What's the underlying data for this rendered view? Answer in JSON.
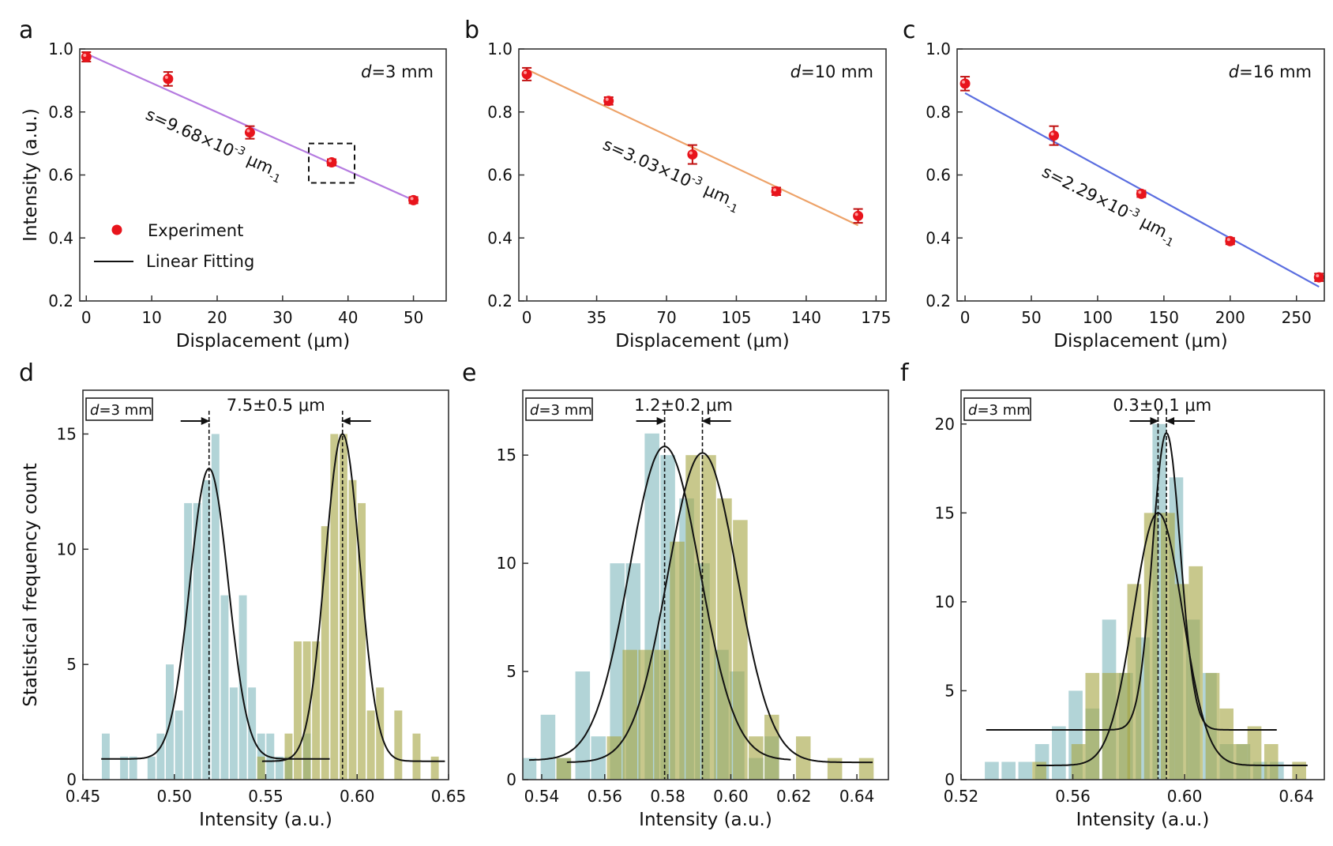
{
  "panel_labels": [
    "a",
    "b",
    "c",
    "d",
    "e",
    "f"
  ],
  "chart_data": [
    {
      "type": "scatter",
      "xlabel": "Displacement (μm)",
      "ylabel": "Intensity (a.u.)",
      "xlim": [
        -1,
        55
      ],
      "ylim": [
        0.2,
        1.0
      ],
      "xticks": [
        "0",
        "10",
        "20",
        "30",
        "40",
        "50"
      ],
      "yticks": [
        "0.2",
        "0.4",
        "0.6",
        "0.8",
        "1.0"
      ],
      "distance_label": [
        "d",
        "=3 mm"
      ],
      "slope_label": [
        "s=9.68×10",
        "-3",
        " μm",
        "-1"
      ],
      "point_color": "#e8141c",
      "fit_color": "#b57be0",
      "points": [
        {
          "x": 0,
          "y": 0.975,
          "err": 0.015
        },
        {
          "x": 12.5,
          "y": 0.905,
          "err": 0.022
        },
        {
          "x": 25,
          "y": 0.735,
          "err": 0.02
        },
        {
          "x": 37.5,
          "y": 0.64,
          "err": 0.01
        },
        {
          "x": 50,
          "y": 0.52,
          "err": 0.01
        }
      ],
      "fit": {
        "x": [
          0,
          50
        ],
        "y": [
          0.985,
          0.52
        ]
      },
      "legend": {
        "experiment": "Experiment",
        "fit": "Linear Fitting"
      },
      "highlight_box": {
        "x": [
          34,
          41
        ],
        "y": [
          0.575,
          0.7
        ]
      }
    },
    {
      "type": "scatter",
      "xlabel": "Displacement (μm)",
      "xlim": [
        -4,
        180
      ],
      "ylim": [
        0.2,
        1.0
      ],
      "xticks": [
        "0",
        "35",
        "70",
        "105",
        "140",
        "175"
      ],
      "yticks": [
        "0.2",
        "0.4",
        "0.6",
        "0.8",
        "1.0"
      ],
      "distance_label": [
        "d",
        "=10 mm"
      ],
      "slope_label": [
        "s=3.03×10",
        "-3",
        " μm",
        "-1"
      ],
      "point_color": "#e8141c",
      "fit_color": "#eda268",
      "points": [
        {
          "x": 0,
          "y": 0.92,
          "err": 0.02
        },
        {
          "x": 41,
          "y": 0.835,
          "err": 0.012
        },
        {
          "x": 83,
          "y": 0.665,
          "err": 0.03
        },
        {
          "x": 125,
          "y": 0.548,
          "err": 0.012
        },
        {
          "x": 166,
          "y": 0.47,
          "err": 0.022
        }
      ],
      "fit": {
        "x": [
          0,
          166
        ],
        "y": [
          0.935,
          0.44
        ]
      }
    },
    {
      "type": "scatter",
      "xlabel": "Displacement (μm)",
      "xlim": [
        -6,
        271
      ],
      "ylim": [
        0.2,
        1.0
      ],
      "xticks": [
        "0",
        "50",
        "100",
        "150",
        "200",
        "250"
      ],
      "yticks": [
        "0.2",
        "0.4",
        "0.6",
        "0.8",
        "1.0"
      ],
      "distance_label": [
        "d",
        "=16 mm"
      ],
      "slope_label": [
        "s=2.29×10",
        "-3",
        " μm",
        "-1"
      ],
      "point_color": "#e8141c",
      "fit_color": "#5b6ee0",
      "points": [
        {
          "x": 0,
          "y": 0.89,
          "err": 0.022
        },
        {
          "x": 67,
          "y": 0.725,
          "err": 0.03
        },
        {
          "x": 133,
          "y": 0.54,
          "err": 0.01
        },
        {
          "x": 200,
          "y": 0.39,
          "err": 0.01
        },
        {
          "x": 267,
          "y": 0.275,
          "err": 0.012
        }
      ],
      "fit": {
        "x": [
          0,
          267
        ],
        "y": [
          0.86,
          0.245
        ]
      }
    },
    {
      "type": "bar",
      "xlabel": "Intensity (a.u.)",
      "ylabel": "Statistical frequency count",
      "xlim": [
        0.45,
        0.65
      ],
      "ylim": [
        0,
        16.9
      ],
      "xticks": [
        "0.45",
        "0.50",
        "0.55",
        "0.60",
        "0.65"
      ],
      "yticks": [
        "0",
        "5",
        "10",
        "15"
      ],
      "distance_label": [
        "d",
        "=3 mm"
      ],
      "separation_label": "7.5±0.5 μm",
      "bin_width": 0.005,
      "series": [
        {
          "color": "#82b9be",
          "bars": [
            [
              0.4625,
              2
            ],
            [
              0.4725,
              1
            ],
            [
              0.4775,
              1
            ],
            [
              0.4875,
              1
            ],
            [
              0.4925,
              2
            ],
            [
              0.4975,
              5
            ],
            [
              0.5025,
              3
            ],
            [
              0.5075,
              12
            ],
            [
              0.5125,
              12
            ],
            [
              0.5175,
              13
            ],
            [
              0.5225,
              15
            ],
            [
              0.5275,
              8
            ],
            [
              0.5325,
              4
            ],
            [
              0.5375,
              8
            ],
            [
              0.5425,
              4
            ],
            [
              0.5475,
              2
            ],
            [
              0.5525,
              2
            ],
            [
              0.5575,
              1
            ],
            [
              0.5625,
              1
            ],
            [
              0.5725,
              2
            ]
          ],
          "gaussian": {
            "center": 0.519,
            "peak": 13.5,
            "baseline": 0.9,
            "sigma": 0.0105,
            "range": [
              0.46,
              0.585
            ]
          }
        },
        {
          "color": "#a6a646",
          "bars": [
            [
              0.5475,
              1
            ],
            [
              0.5625,
              2
            ],
            [
              0.5675,
              6
            ],
            [
              0.5725,
              6
            ],
            [
              0.5775,
              6
            ],
            [
              0.5825,
              11
            ],
            [
              0.5875,
              15
            ],
            [
              0.5925,
              15
            ],
            [
              0.5975,
              13
            ],
            [
              0.6025,
              12
            ],
            [
              0.6075,
              3
            ],
            [
              0.6125,
              4
            ],
            [
              0.6225,
              3
            ],
            [
              0.6325,
              2
            ],
            [
              0.6425,
              1
            ]
          ],
          "gaussian": {
            "center": 0.592,
            "peak": 15.0,
            "baseline": 0.8,
            "sigma": 0.0095,
            "range": [
              0.548,
              0.648
            ]
          }
        }
      ]
    },
    {
      "type": "bar",
      "xlabel": "Intensity (a.u.)",
      "xlim": [
        0.534,
        0.65
      ],
      "ylim": [
        0,
        18
      ],
      "xticks": [
        "0.54",
        "0.56",
        "0.58",
        "0.60",
        "0.62",
        "0.64"
      ],
      "yticks": [
        "0",
        "5",
        "10",
        "15"
      ],
      "distance_label": [
        "d",
        "=3 mm"
      ],
      "separation_label": "1.2±0.2 μm",
      "bin_width": 0.0054,
      "series": [
        {
          "color": "#82b9be",
          "bars": [
            [
              0.536,
              1
            ],
            [
              0.542,
              3
            ],
            [
              0.547,
              1
            ],
            [
              0.553,
              5
            ],
            [
              0.558,
              2
            ],
            [
              0.564,
              10
            ],
            [
              0.569,
              10
            ],
            [
              0.575,
              16
            ],
            [
              0.58,
              15
            ],
            [
              0.586,
              13
            ],
            [
              0.591,
              10
            ],
            [
              0.597,
              6
            ],
            [
              0.602,
              5
            ],
            [
              0.608,
              1
            ],
            [
              0.613,
              2
            ]
          ],
          "gaussian": {
            "center": 0.579,
            "peak": 15.4,
            "baseline": 0.9,
            "sigma": 0.0112,
            "range": [
              0.536,
              0.619
            ]
          }
        },
        {
          "color": "#a6a646",
          "bars": [
            [
              0.547,
              1
            ],
            [
              0.563,
              2
            ],
            [
              0.568,
              6
            ],
            [
              0.573,
              6
            ],
            [
              0.578,
              6
            ],
            [
              0.583,
              11
            ],
            [
              0.588,
              15
            ],
            [
              0.593,
              15
            ],
            [
              0.598,
              13
            ],
            [
              0.603,
              12
            ],
            [
              0.608,
              2
            ],
            [
              0.613,
              3
            ],
            [
              0.623,
              2
            ],
            [
              0.633,
              1
            ],
            [
              0.643,
              1
            ]
          ],
          "gaussian": {
            "center": 0.591,
            "peak": 15.1,
            "baseline": 0.8,
            "sigma": 0.011,
            "range": [
              0.548,
              0.645
            ]
          }
        }
      ]
    },
    {
      "type": "bar",
      "xlabel": "Intensity (a.u.)",
      "xlim": [
        0.52,
        0.65
      ],
      "ylim": [
        0,
        21.9
      ],
      "xticks": [
        "0.52",
        "0.56",
        "0.60",
        "0.64"
      ],
      "yticks": [
        "0",
        "5",
        "10",
        "15",
        "20"
      ],
      "distance_label": [
        "d",
        "=3 mm"
      ],
      "separation_label": "0.3±0.1 μm",
      "bin_width": 0.0058,
      "series": [
        {
          "color": "#82b9be",
          "bars": [
            [
              0.531,
              1
            ],
            [
              0.537,
              1
            ],
            [
              0.543,
              1
            ],
            [
              0.549,
              2
            ],
            [
              0.555,
              3
            ],
            [
              0.561,
              5
            ],
            [
              0.567,
              4
            ],
            [
              0.573,
              9
            ],
            [
              0.579,
              6
            ],
            [
              0.585,
              8
            ],
            [
              0.591,
              20
            ],
            [
              0.597,
              17
            ],
            [
              0.603,
              9
            ],
            [
              0.609,
              6
            ],
            [
              0.615,
              2
            ],
            [
              0.621,
              2
            ],
            [
              0.627,
              1
            ],
            [
              0.633,
              1
            ]
          ],
          "gaussian": {
            "center": 0.5935,
            "peak": 19.5,
            "baseline": 2.8,
            "sigma": 0.005,
            "range": [
              0.529,
              0.633
            ]
          }
        },
        {
          "color": "#a6a646",
          "bars": [
            [
              0.548,
              1
            ],
            [
              0.562,
              2
            ],
            [
              0.567,
              6
            ],
            [
              0.573,
              6
            ],
            [
              0.578,
              6
            ],
            [
              0.582,
              11
            ],
            [
              0.588,
              15
            ],
            [
              0.594,
              15
            ],
            [
              0.599,
              11
            ],
            [
              0.604,
              12
            ],
            [
              0.61,
              6
            ],
            [
              0.615,
              4
            ],
            [
              0.62,
              2
            ],
            [
              0.625,
              3
            ],
            [
              0.631,
              2
            ],
            [
              0.641,
              1
            ]
          ],
          "gaussian": {
            "center": 0.5905,
            "peak": 15.0,
            "baseline": 0.8,
            "sigma": 0.0088,
            "range": [
              0.547,
              0.644
            ]
          }
        }
      ]
    }
  ]
}
